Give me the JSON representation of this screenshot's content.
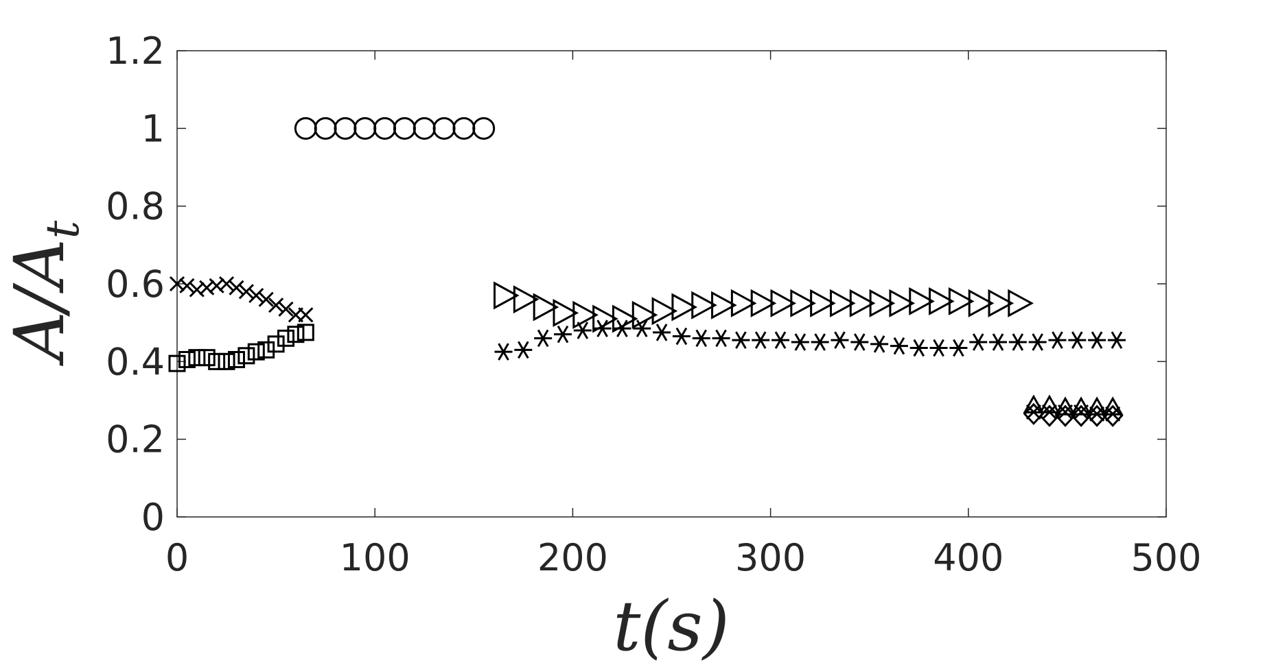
{
  "chart_data": {
    "type": "scatter",
    "xlabel": "t(s)",
    "ylabel": "A/A_t",
    "ylabel_main": "A/A",
    "ylabel_sub": "t",
    "xlim": [
      0,
      500
    ],
    "ylim": [
      0,
      1.2
    ],
    "xticks": [
      "0",
      "100",
      "200",
      "300",
      "400",
      "500"
    ],
    "yticks": [
      "0",
      "0.2",
      "0.4",
      "0.6",
      "0.8",
      "1",
      "1.2"
    ],
    "grid": false,
    "legend": "none",
    "series": [
      {
        "marker": "x",
        "x": [
          0,
          5,
          10,
          15,
          20,
          25,
          30,
          35,
          40,
          45,
          50,
          55,
          60,
          65
        ],
        "y": [
          0.6,
          0.595,
          0.585,
          0.59,
          0.595,
          0.6,
          0.59,
          0.58,
          0.57,
          0.56,
          0.545,
          0.535,
          0.52,
          0.52
        ]
      },
      {
        "marker": "square",
        "x": [
          0,
          5,
          10,
          15,
          20,
          25,
          30,
          35,
          40,
          45,
          50,
          55,
          60,
          65
        ],
        "y": [
          0.395,
          0.405,
          0.41,
          0.41,
          0.4,
          0.4,
          0.405,
          0.415,
          0.425,
          0.43,
          0.445,
          0.46,
          0.47,
          0.475
        ]
      },
      {
        "marker": "circle",
        "x": [
          65,
          75,
          85,
          95,
          105,
          115,
          125,
          135,
          145,
          155
        ],
        "y": [
          1,
          1,
          1,
          1,
          1,
          1,
          1,
          1,
          1,
          1
        ]
      },
      {
        "marker": "triangle-right",
        "x": [
          165,
          175,
          185,
          195,
          205,
          215,
          225,
          235,
          245,
          255,
          265,
          275,
          285,
          295,
          305,
          315,
          325,
          335,
          345,
          355,
          365,
          375,
          385,
          395,
          405,
          415,
          425
        ],
        "y": [
          0.57,
          0.56,
          0.54,
          0.525,
          0.52,
          0.51,
          0.51,
          0.52,
          0.53,
          0.54,
          0.545,
          0.545,
          0.55,
          0.55,
          0.55,
          0.55,
          0.55,
          0.55,
          0.55,
          0.55,
          0.55,
          0.555,
          0.555,
          0.555,
          0.55,
          0.55,
          0.55
        ]
      },
      {
        "marker": "asterisk",
        "x": [
          165,
          175,
          185,
          195,
          205,
          215,
          225,
          235,
          245,
          255,
          265,
          275,
          285,
          295,
          305,
          315,
          325,
          335,
          345,
          355,
          365,
          375,
          385,
          395,
          405,
          415,
          425,
          435,
          445,
          455,
          465,
          475
        ],
        "y": [
          0.425,
          0.43,
          0.46,
          0.47,
          0.48,
          0.485,
          0.485,
          0.485,
          0.475,
          0.465,
          0.46,
          0.46,
          0.455,
          0.455,
          0.455,
          0.45,
          0.45,
          0.455,
          0.45,
          0.445,
          0.44,
          0.435,
          0.435,
          0.435,
          0.45,
          0.45,
          0.45,
          0.45,
          0.455,
          0.455,
          0.455,
          0.455
        ]
      },
      {
        "marker": "diamond",
        "x": [
          433,
          441,
          449,
          457,
          465,
          473
        ],
        "y": [
          0.265,
          0.26,
          0.26,
          0.26,
          0.26,
          0.26
        ]
      },
      {
        "marker": "triangle-up",
        "x": [
          433,
          441,
          449,
          457,
          465,
          473
        ],
        "y": [
          0.285,
          0.285,
          0.28,
          0.28,
          0.28,
          0.28
        ]
      },
      {
        "marker": "x",
        "x": [
          433,
          441,
          449,
          457,
          465,
          473
        ],
        "y": [
          0.27,
          0.27,
          0.27,
          0.27,
          0.265,
          0.265
        ]
      }
    ]
  }
}
